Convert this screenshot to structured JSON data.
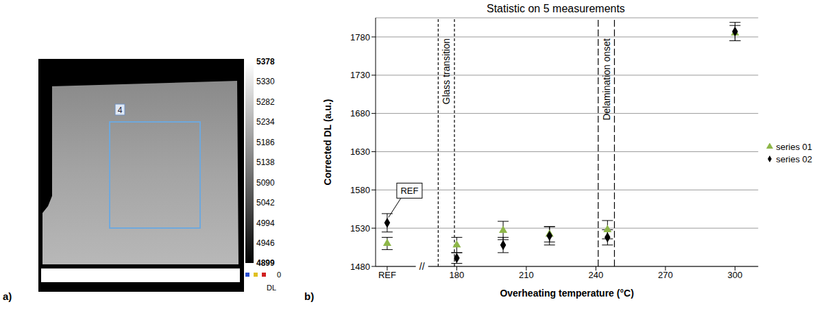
{
  "chart_data": [
    {
      "type": "image",
      "label": "a)",
      "roi_label": "4",
      "counter": 0,
      "colorbar": {
        "label": "DL",
        "range": [
          4899,
          5378
        ],
        "ticks": [
          5378,
          5330,
          5282,
          5234,
          5186,
          5138,
          5090,
          5042,
          4994,
          4946,
          4899
        ]
      }
    },
    {
      "type": "scatter",
      "label": "b)",
      "title": "Statistic on 5 measurements",
      "x_label": "Overheating temperature (°C)",
      "y_label": "Corrected DL (a.u.)",
      "x": [
        150,
        180,
        200,
        220,
        245,
        300
      ],
      "xlim": [
        145,
        310
      ],
      "xticks": [
        {
          "value": 150,
          "label": "REF"
        },
        180,
        210,
        240,
        270,
        300
      ],
      "ylim": [
        1480,
        1805
      ],
      "yticks": [
        1480,
        1530,
        1580,
        1630,
        1680,
        1730,
        1780
      ],
      "grid": true,
      "legend": "right",
      "series": [
        {
          "name": "series 01",
          "color": "#8db648",
          "marker": "triangle",
          "values": [
            1510,
            1508,
            1527,
            1522,
            1528,
            1785
          ],
          "errors": [
            8,
            10,
            12,
            10,
            12,
            10
          ]
        },
        {
          "name": "series 02",
          "color": "#000000",
          "marker": "diamond",
          "values": [
            1537,
            1491,
            1508,
            1520,
            1518,
            1787
          ],
          "errors": [
            12,
            7,
            10,
            12,
            10,
            12
          ]
        }
      ],
      "annotations": [
        {
          "text": "Glass transition",
          "x": [
            172,
            179
          ]
        },
        {
          "text": "Delamination onset",
          "x": [
            241,
            248
          ]
        },
        {
          "text": "REF",
          "x": 150,
          "y": 1537
        },
        {
          "text": "//",
          "x": 165
        }
      ]
    }
  ]
}
